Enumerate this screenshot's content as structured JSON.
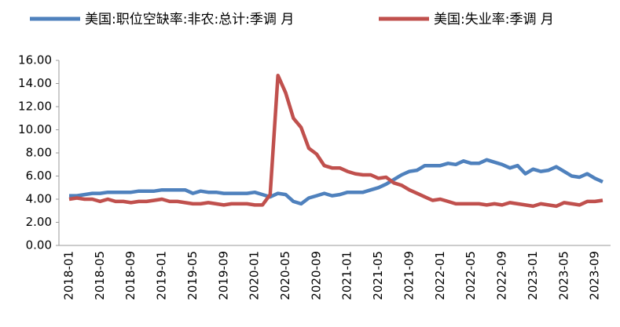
{
  "chart_data": {
    "type": "line",
    "categories": [
      "2018-01",
      null,
      null,
      null,
      "2018-05",
      null,
      null,
      null,
      "2018-09",
      null,
      null,
      null,
      "2019-01",
      null,
      null,
      null,
      "2019-05",
      null,
      null,
      null,
      "2019-09",
      null,
      null,
      null,
      "2020-01",
      null,
      null,
      null,
      "2020-05",
      null,
      null,
      null,
      "2020-09",
      null,
      null,
      null,
      "2021-01",
      null,
      null,
      null,
      "2021-05",
      null,
      null,
      null,
      "2021-09",
      null,
      null,
      null,
      "2022-01",
      null,
      null,
      null,
      "2022-05",
      null,
      null,
      null,
      "2022-09",
      null,
      null,
      null,
      "2023-01",
      null,
      null,
      null,
      "2023-05",
      null,
      null,
      null,
      "2023-09",
      null
    ],
    "series": [
      {
        "name": "美国:职位空缺率:非农:总计:季调 月",
        "color": "#4f81bd",
        "values": [
          4.3,
          4.3,
          4.4,
          4.5,
          4.5,
          4.6,
          4.6,
          4.6,
          4.6,
          4.7,
          4.7,
          4.7,
          4.8,
          4.8,
          4.8,
          4.8,
          4.5,
          4.7,
          4.6,
          4.6,
          4.5,
          4.5,
          4.5,
          4.5,
          4.6,
          4.4,
          4.2,
          4.5,
          4.4,
          3.8,
          3.6,
          4.1,
          4.3,
          4.5,
          4.3,
          4.4,
          4.6,
          4.6,
          4.6,
          4.8,
          5.0,
          5.3,
          5.7,
          6.1,
          6.4,
          6.5,
          6.9,
          6.9,
          6.9,
          7.1,
          7.0,
          7.3,
          7.1,
          7.1,
          7.4,
          7.2,
          7.0,
          6.7,
          6.9,
          6.2,
          6.6,
          6.4,
          6.5,
          6.8,
          6.4,
          6.0,
          5.9,
          6.2,
          5.8,
          5.5
        ]
      },
      {
        "name": "美国:失业率:季调 月",
        "color": "#c0504d",
        "values": [
          4.0,
          4.1,
          4.0,
          4.0,
          3.8,
          4.0,
          3.8,
          3.8,
          3.7,
          3.8,
          3.8,
          3.9,
          4.0,
          3.8,
          3.8,
          3.7,
          3.6,
          3.6,
          3.7,
          3.6,
          3.5,
          3.6,
          3.6,
          3.6,
          3.5,
          3.5,
          4.4,
          14.7,
          13.2,
          11.0,
          10.2,
          8.4,
          7.9,
          6.9,
          6.7,
          6.7,
          6.4,
          6.2,
          6.1,
          6.1,
          5.8,
          5.9,
          5.4,
          5.2,
          4.8,
          4.5,
          4.2,
          3.9,
          4.0,
          3.8,
          3.6,
          3.6,
          3.6,
          3.6,
          3.5,
          3.6,
          3.5,
          3.7,
          3.6,
          3.5,
          3.4,
          3.6,
          3.5,
          3.4,
          3.7,
          3.6,
          3.5,
          3.8,
          3.8,
          3.9
        ]
      }
    ],
    "ylim": [
      0,
      16
    ],
    "yticks": [
      {
        "value": 0,
        "label": "0.00"
      },
      {
        "value": 2,
        "label": "2.00"
      },
      {
        "value": 4,
        "label": "4.00"
      },
      {
        "value": 6,
        "label": "6.00"
      },
      {
        "value": 8,
        "label": "8.00"
      },
      {
        "value": 10,
        "label": "10.00"
      },
      {
        "value": 12,
        "label": "12.00"
      },
      {
        "value": 14,
        "label": "14.00"
      },
      {
        "value": 16,
        "label": "16.00"
      }
    ]
  }
}
